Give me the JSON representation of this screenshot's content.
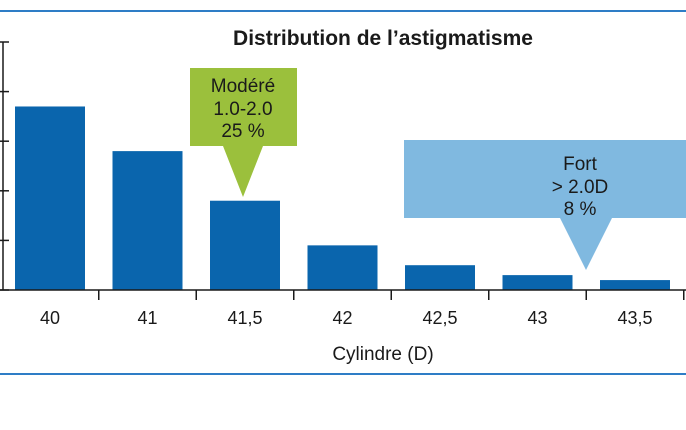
{
  "chart_data": {
    "type": "bar",
    "title": "Distribution de l’astigmatisme",
    "xlabel": "Cylindre (D)",
    "ylabel": "",
    "categories": [
      "40",
      "41",
      "41,5",
      "42",
      "42,5",
      "43",
      "43,5"
    ],
    "values": [
      3.7,
      2.8,
      1.8,
      0.9,
      0.5,
      0.3,
      0.2
    ],
    "ylim": [
      0,
      5
    ],
    "grid": false,
    "annotations": [
      {
        "lines": [
          "Modéré",
          "1.0-2.0",
          "25 %"
        ],
        "category": "41,5"
      },
      {
        "lines": [
          "Fort",
          "> 2.0D",
          "8 %"
        ],
        "category": "43"
      }
    ],
    "colors": {
      "bar": "#0a65ad",
      "accent_line": "#2e7dc6",
      "moderate_callout": "#9bc03c",
      "strong_callout": "#80b9e0"
    }
  }
}
